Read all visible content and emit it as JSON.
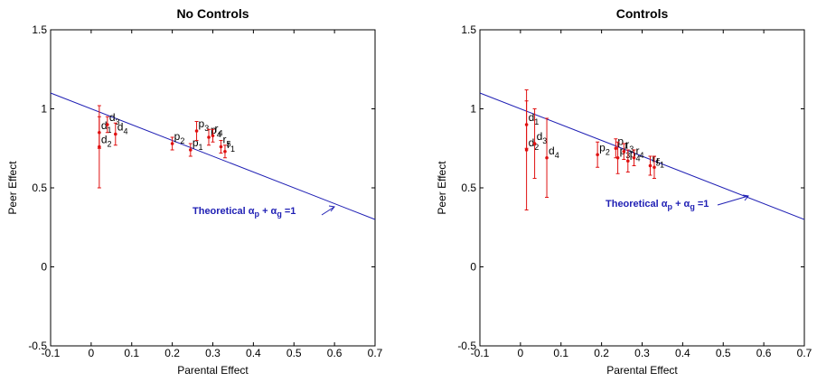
{
  "chart_data": [
    {
      "type": "scatter",
      "title": "No Controls",
      "x_label": "Parental Effect",
      "y_label": "Peer Effect",
      "xlim": [
        -0.1,
        0.7
      ],
      "ylim": [
        -0.5,
        1.5
      ],
      "xticks": [
        -0.1,
        0,
        0.1,
        0.2,
        0.3,
        0.4,
        0.5,
        0.6,
        0.7
      ],
      "yticks": [
        -0.5,
        0,
        0.5,
        1,
        1.5
      ],
      "point_color": "#e01010",
      "line_color": "#1f1fb4",
      "line": {
        "x": [
          -0.1,
          0.7
        ],
        "y": [
          1.1,
          0.3
        ]
      },
      "annotation": [
        {
          "text": "Theoretical α"
        },
        {
          "text": "p",
          "sub": true
        },
        {
          "text": " + α"
        },
        {
          "text": "g",
          "sub": true
        },
        {
          "text": " =1"
        }
      ],
      "points": [
        {
          "label": "d",
          "sub": "1",
          "x": 0.02,
          "y": 0.85,
          "err": 0.1
        },
        {
          "label": "d",
          "sub": "2",
          "x": 0.02,
          "y": 0.76,
          "err": 0.26
        },
        {
          "label": "d",
          "sub": "3",
          "x": 0.04,
          "y": 0.9,
          "err": 0.05
        },
        {
          "label": "d",
          "sub": "4",
          "x": 0.06,
          "y": 0.84,
          "err": 0.07
        },
        {
          "label": "p",
          "sub": "2",
          "x": 0.2,
          "y": 0.78,
          "err": 0.04
        },
        {
          "label": "p",
          "sub": "1",
          "x": 0.245,
          "y": 0.74,
          "err": 0.04
        },
        {
          "label": "p",
          "sub": "3",
          "x": 0.26,
          "y": 0.86,
          "err": 0.06
        },
        {
          "label": "p",
          "sub": "4",
          "x": 0.29,
          "y": 0.82,
          "err": 0.05
        },
        {
          "label": "r",
          "sub": "4",
          "x": 0.3,
          "y": 0.83,
          "err": 0.04
        },
        {
          "label": "r",
          "sub": "5",
          "x": 0.32,
          "y": 0.76,
          "err": 0.04
        },
        {
          "label": "r",
          "sub": "1",
          "x": 0.33,
          "y": 0.73,
          "err": 0.04
        }
      ]
    },
    {
      "type": "scatter",
      "title": "Controls",
      "x_label": "Parental Effect",
      "y_label": "Peer Effect",
      "xlim": [
        -0.1,
        0.7
      ],
      "ylim": [
        -0.5,
        1.5
      ],
      "xticks": [
        -0.1,
        0,
        0.1,
        0.2,
        0.3,
        0.4,
        0.5,
        0.6,
        0.7
      ],
      "yticks": [
        -0.5,
        0,
        0.5,
        1,
        1.5
      ],
      "point_color": "#e01010",
      "line_color": "#1f1fb4",
      "line": {
        "x": [
          -0.1,
          0.7
        ],
        "y": [
          1.1,
          0.3
        ]
      },
      "annotation": [
        {
          "text": "Theoretical α"
        },
        {
          "text": "p",
          "sub": true
        },
        {
          "text": " + α"
        },
        {
          "text": "g",
          "sub": true
        },
        {
          "text": " =1"
        }
      ],
      "points": [
        {
          "label": "d",
          "sub": "1",
          "x": 0.015,
          "y": 0.9,
          "err": 0.15
        },
        {
          "label": "d",
          "sub": "2",
          "x": 0.015,
          "y": 0.74,
          "err": 0.38
        },
        {
          "label": "d",
          "sub": "3",
          "x": 0.035,
          "y": 0.78,
          "err": 0.22
        },
        {
          "label": "d",
          "sub": "4",
          "x": 0.065,
          "y": 0.69,
          "err": 0.25
        },
        {
          "label": "p",
          "sub": "2",
          "x": 0.19,
          "y": 0.71,
          "err": 0.08
        },
        {
          "label": "p",
          "sub": "1",
          "x": 0.235,
          "y": 0.75,
          "err": 0.06
        },
        {
          "label": "p",
          "sub": "3",
          "x": 0.24,
          "y": 0.69,
          "err": 0.1
        },
        {
          "label": "r",
          "sub": "3",
          "x": 0.255,
          "y": 0.73,
          "err": 0.05
        },
        {
          "label": "p",
          "sub": "4",
          "x": 0.265,
          "y": 0.67,
          "err": 0.07
        },
        {
          "label": "r",
          "sub": "4",
          "x": 0.28,
          "y": 0.69,
          "err": 0.05
        },
        {
          "label": "r",
          "sub": "5",
          "x": 0.32,
          "y": 0.64,
          "err": 0.06
        },
        {
          "label": "r",
          "sub": "1",
          "x": 0.33,
          "y": 0.63,
          "err": 0.07
        }
      ]
    }
  ]
}
